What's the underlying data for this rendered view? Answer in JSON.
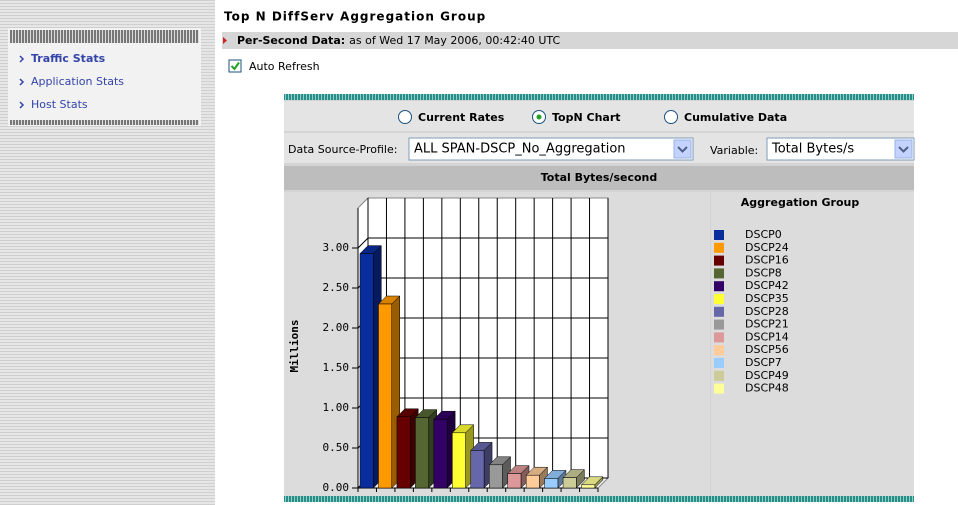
{
  "nav": {
    "items": [
      "Traffic Stats",
      "Application Stats",
      "Host Stats"
    ],
    "active": 0
  },
  "header": {
    "title": "Top N DiffServ Aggregation Group",
    "status_label": "Per-Second Data:",
    "status_text": "as of Wed 17 May 2006, 00:42:40 UTC"
  },
  "auto_refresh": {
    "label": "Auto Refresh",
    "checked": true
  },
  "view_options": [
    "Current Rates",
    "TopN Chart",
    "Cumulative Data"
  ],
  "selected_view": 1,
  "data_source": {
    "label": "Data Source-Profile:",
    "value": "ALL SPAN-DSCP_No_Aggregation"
  },
  "variable": {
    "label": "Variable:",
    "value": "Total Bytes/s"
  },
  "chart_data": {
    "type": "bar",
    "title": "Total Bytes/second",
    "ylabel": "Millions",
    "legend_title": "Aggregation Group",
    "categories": [
      "DSCP0",
      "DSCP24",
      "DSCP16",
      "DSCP8",
      "DSCP42",
      "DSCP35",
      "DSCP28",
      "DSCP21",
      "DSCP14",
      "DSCP56",
      "DSCP7",
      "DSCP49",
      "DSCP48"
    ],
    "values": [
      2.93,
      2.3,
      0.89,
      0.88,
      0.86,
      0.69,
      0.47,
      0.29,
      0.18,
      0.16,
      0.12,
      0.13,
      0.04
    ],
    "colors": [
      "#0a2d9e",
      "#ff9900",
      "#660000",
      "#556633",
      "#330066",
      "#ffff33",
      "#6666aa",
      "#999999",
      "#dd9999",
      "#ffcc99",
      "#99ccff",
      "#cccc99",
      "#ffff99"
    ],
    "ylim": [
      0,
      3.5
    ],
    "yticks": [
      {
        "value": 0,
        "label": "0.00"
      },
      {
        "value": 0.5,
        "label": "0.50"
      },
      {
        "value": 1,
        "label": "1.00"
      },
      {
        "value": 1.5,
        "label": "1.50"
      },
      {
        "value": 2,
        "label": "2.00"
      },
      {
        "value": 2.5,
        "label": "2.50"
      },
      {
        "value": 3,
        "label": "3.00"
      }
    ],
    "grid": true
  }
}
